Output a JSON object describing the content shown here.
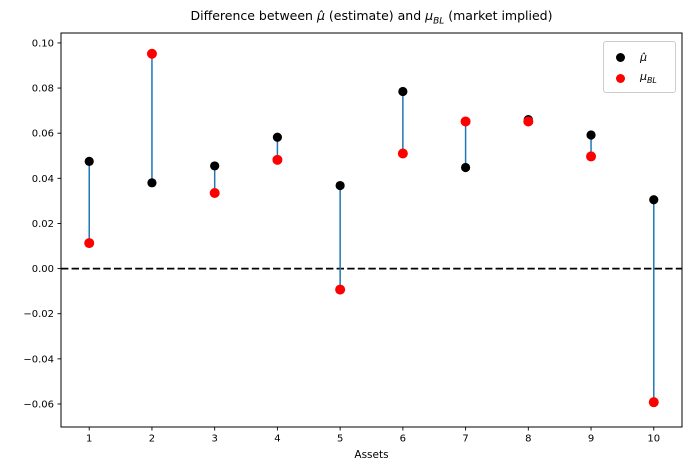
{
  "figure": {
    "title": {
      "prefix": "Difference between ",
      "mu_hat": "μ̂",
      "mid": " (estimate) and ",
      "mu": "μ",
      "sub": "BL",
      "suffix": " (market implied)"
    },
    "legend": {
      "mu_hat_label": "μ̂",
      "mu_label": "μ",
      "mu_sub": "BL"
    }
  },
  "chart_data": {
    "type": "scatter",
    "title": "Difference between μ̂ (estimate) and μ_BL (market implied)",
    "xlabel": "Assets",
    "ylabel": "",
    "categories": [
      1,
      2,
      3,
      4,
      5,
      6,
      7,
      8,
      9,
      10
    ],
    "series": [
      {
        "name": "μ̂",
        "marker": "circle",
        "color": "#000000",
        "values": [
          0.0475,
          0.038,
          0.0455,
          0.0582,
          0.0368,
          0.0785,
          0.0448,
          0.066,
          0.0592,
          0.0305
        ]
      },
      {
        "name": "μ_BL",
        "marker": "circle",
        "color": "#ff0000",
        "values": [
          0.0113,
          0.0952,
          0.0335,
          0.0482,
          -0.0093,
          0.051,
          0.0652,
          0.0652,
          0.0497,
          -0.0592
        ]
      }
    ],
    "connectors": {
      "color": "#1f77b4",
      "width": 1.5
    },
    "zero_line": {
      "y": 0,
      "color": "#000000",
      "style": "dashed",
      "width": 1.8
    },
    "xlim": [
      0.55,
      10.45
    ],
    "ylim": [
      -0.0702,
      0.1044
    ],
    "xticks": [
      1,
      2,
      3,
      4,
      5,
      6,
      7,
      8,
      9,
      10
    ],
    "yticks": [
      -0.06,
      -0.04,
      -0.02,
      0,
      0.02,
      0.04,
      0.06,
      0.08,
      0.1
    ],
    "grid": false,
    "legend_position": "upper right",
    "axis_color": "#000000",
    "marker_radius": {
      "mu_hat": 4.6,
      "mu_bl": 5.0
    }
  }
}
